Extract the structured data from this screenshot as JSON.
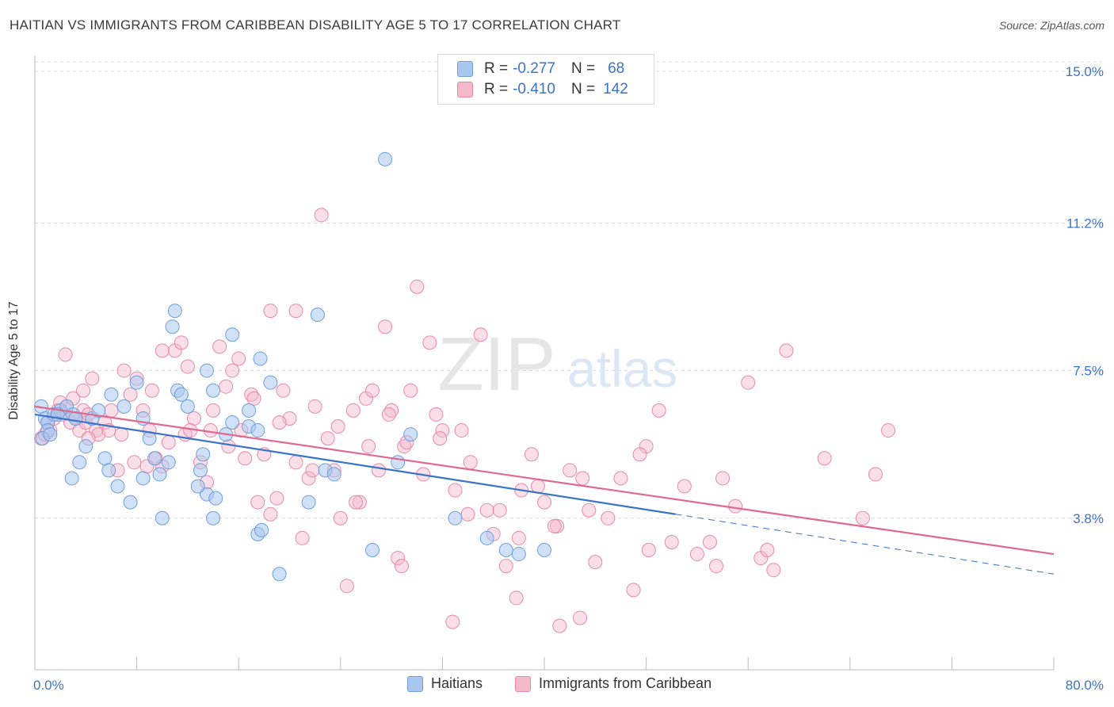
{
  "title": "HAITIAN VS IMMIGRANTS FROM CARIBBEAN DISABILITY AGE 5 TO 17 CORRELATION CHART",
  "source": "Source: ZipAtlas.com",
  "watermark": {
    "zip": "ZIP",
    "atlas": "atlas"
  },
  "legend": {
    "r_label": "R =",
    "n_label": "N =",
    "items": [
      {
        "name": "Haitians",
        "r": "-0.277",
        "n": "68",
        "fill": "#a9c6ee",
        "stroke": "#6f9fdc"
      },
      {
        "name": "Immigrants from Caribbean",
        "r": "-0.410",
        "n": "142",
        "fill": "#f5b9cc",
        "stroke": "#e68aa8"
      }
    ]
  },
  "colors": {
    "blue": "#3a74c9",
    "pink": "#e0698f",
    "grid": "#d9d9d9",
    "tick_text": "#3a74c9"
  },
  "chart_data": {
    "type": "scatter",
    "title": "HAITIAN VS IMMIGRANTS FROM CARIBBEAN DISABILITY AGE 5 TO 17 CORRELATION CHART",
    "xlabel": "",
    "ylabel": "Disability Age 5 to 17",
    "xlim": [
      0,
      80
    ],
    "ylim": [
      0,
      15.4
    ],
    "x_tick_labels": [
      "0.0%",
      "80.0%"
    ],
    "y_ticks": [
      3.8,
      7.5,
      11.2,
      15.0
    ],
    "y_tick_labels": [
      "3.8%",
      "7.5%",
      "11.2%",
      "15.0%"
    ],
    "grid": true,
    "legend_position": "top-center",
    "series": [
      {
        "name": "Haitians",
        "color": "#6f9fdc",
        "trend": {
          "x": [
            0,
            50.3
          ],
          "y": [
            6.4,
            3.9
          ],
          "dashed_to": [
            80,
            2.4
          ]
        },
        "points": [
          [
            0.5,
            6.6
          ],
          [
            0.8,
            6.3
          ],
          [
            1,
            6.2
          ],
          [
            1,
            6.0
          ],
          [
            0.6,
            5.8
          ],
          [
            1.5,
            6.4
          ],
          [
            2,
            6.5
          ],
          [
            2.5,
            6.6
          ],
          [
            1.8,
            6.4
          ],
          [
            1.2,
            5.9
          ],
          [
            3,
            6.4
          ],
          [
            4.5,
            6.3
          ],
          [
            5,
            6.5
          ],
          [
            3.5,
            5.2
          ],
          [
            4,
            5.6
          ],
          [
            5.5,
            5.3
          ],
          [
            5.8,
            5.0
          ],
          [
            2.9,
            4.8
          ],
          [
            6.5,
            4.6
          ],
          [
            3.2,
            6.3
          ],
          [
            7,
            6.6
          ],
          [
            6,
            6.9
          ],
          [
            8,
            7.2
          ],
          [
            8.5,
            6.3
          ],
          [
            9,
            5.8
          ],
          [
            9.8,
            4.9
          ],
          [
            8.5,
            4.8
          ],
          [
            7.5,
            4.2
          ],
          [
            10,
            3.8
          ],
          [
            9.4,
            5.3
          ],
          [
            10.8,
            8.6
          ],
          [
            11,
            9.0
          ],
          [
            11.2,
            7.0
          ],
          [
            11.5,
            6.9
          ],
          [
            12,
            6.6
          ],
          [
            13.5,
            7.5
          ],
          [
            14,
            7.0
          ],
          [
            15.5,
            6.2
          ],
          [
            16.8,
            6.1
          ],
          [
            17.5,
            6.0
          ],
          [
            17.7,
            7.8
          ],
          [
            18.5,
            7.2
          ],
          [
            15.5,
            8.4
          ],
          [
            13.2,
            5.4
          ],
          [
            13.5,
            4.4
          ],
          [
            14,
            3.8
          ],
          [
            14.2,
            4.3
          ],
          [
            15,
            5.9
          ],
          [
            16.8,
            6.5
          ],
          [
            10.5,
            5.2
          ],
          [
            12.8,
            4.6
          ],
          [
            13,
            5.0
          ],
          [
            17.5,
            3.4
          ],
          [
            17.8,
            3.5
          ],
          [
            19.2,
            2.4
          ],
          [
            21.5,
            4.2
          ],
          [
            22.2,
            8.9
          ],
          [
            22.8,
            5.0
          ],
          [
            23.5,
            4.9
          ],
          [
            26.5,
            3.0
          ],
          [
            27.5,
            12.8
          ],
          [
            28.5,
            5.2
          ],
          [
            29.5,
            5.9
          ],
          [
            33,
            3.8
          ],
          [
            35.5,
            3.3
          ],
          [
            37,
            3.0
          ],
          [
            38,
            2.9
          ],
          [
            40,
            3.0
          ]
        ]
      },
      {
        "name": "Immigrants from Caribbean",
        "color": "#e68aa8",
        "trend": {
          "x": [
            0,
            80
          ],
          "y": [
            6.6,
            2.9
          ]
        },
        "points": [
          [
            0.5,
            5.8
          ],
          [
            0.8,
            5.9
          ],
          [
            1,
            6.2
          ],
          [
            1.2,
            6.0
          ],
          [
            1.5,
            6.3
          ],
          [
            1.8,
            6.5
          ],
          [
            2,
            6.7
          ],
          [
            2.2,
            6.4
          ],
          [
            2.5,
            6.6
          ],
          [
            2.8,
            6.2
          ],
          [
            3,
            6.8
          ],
          [
            3.2,
            6.3
          ],
          [
            3.5,
            6.0
          ],
          [
            3.8,
            6.5
          ],
          [
            4,
            6.2
          ],
          [
            4.2,
            6.4
          ],
          [
            4.5,
            7.3
          ],
          [
            4.8,
            6.0
          ],
          [
            5,
            5.9
          ],
          [
            2.4,
            7.9
          ],
          [
            5.5,
            6.2
          ],
          [
            6,
            6.5
          ],
          [
            6.5,
            5.0
          ],
          [
            7,
            7.5
          ],
          [
            7.5,
            6.9
          ],
          [
            8,
            7.3
          ],
          [
            8.5,
            6.5
          ],
          [
            9,
            6.0
          ],
          [
            9.5,
            5.3
          ],
          [
            10,
            5.1
          ],
          [
            10.5,
            5.7
          ],
          [
            11,
            8.0
          ],
          [
            11.5,
            8.2
          ],
          [
            12,
            7.6
          ],
          [
            12.5,
            6.3
          ],
          [
            13,
            5.2
          ],
          [
            13.5,
            4.7
          ],
          [
            14,
            6.5
          ],
          [
            14.5,
            8.1
          ],
          [
            15,
            7.1
          ],
          [
            15.5,
            7.5
          ],
          [
            16,
            7.8
          ],
          [
            16.5,
            5.3
          ],
          [
            17,
            6.9
          ],
          [
            17.5,
            4.2
          ],
          [
            18,
            5.4
          ],
          [
            18.5,
            3.9
          ],
          [
            19,
            4.3
          ],
          [
            19.5,
            7.0
          ],
          [
            20,
            6.3
          ],
          [
            20.5,
            5.2
          ],
          [
            21,
            3.3
          ],
          [
            21.5,
            4.8
          ],
          [
            22,
            6.6
          ],
          [
            22.5,
            11.4
          ],
          [
            23,
            5.8
          ],
          [
            23.5,
            5.0
          ],
          [
            24,
            3.8
          ],
          [
            24.5,
            2.1
          ],
          [
            25,
            6.5
          ],
          [
            25.5,
            4.2
          ],
          [
            26,
            6.8
          ],
          [
            26.5,
            7.0
          ],
          [
            27,
            5.0
          ],
          [
            27.5,
            8.6
          ],
          [
            28,
            6.5
          ],
          [
            28.5,
            2.8
          ],
          [
            29,
            5.6
          ],
          [
            29.5,
            7.0
          ],
          [
            30,
            9.6
          ],
          [
            30.5,
            4.9
          ],
          [
            31,
            8.2
          ],
          [
            31.5,
            6.4
          ],
          [
            32,
            6.0
          ],
          [
            33,
            4.5
          ],
          [
            33.5,
            6.0
          ],
          [
            34,
            3.9
          ],
          [
            35,
            8.4
          ],
          [
            35.5,
            4.0
          ],
          [
            36,
            3.4
          ],
          [
            37,
            2.6
          ],
          [
            38,
            3.3
          ],
          [
            39,
            5.4
          ],
          [
            39.5,
            4.6
          ],
          [
            40,
            4.2
          ],
          [
            41,
            3.6
          ],
          [
            42,
            5.0
          ],
          [
            43,
            4.8
          ],
          [
            44,
            2.7
          ],
          [
            45,
            3.8
          ],
          [
            46,
            4.8
          ],
          [
            47,
            2.0
          ],
          [
            48,
            5.6
          ],
          [
            49,
            6.5
          ],
          [
            50,
            3.2
          ],
          [
            51,
            4.6
          ],
          [
            52,
            2.9
          ],
          [
            53,
            3.2
          ],
          [
            54,
            4.8
          ],
          [
            55,
            4.1
          ],
          [
            56,
            7.2
          ],
          [
            57,
            2.8
          ],
          [
            58,
            2.5
          ],
          [
            59,
            8.0
          ],
          [
            62,
            5.3
          ],
          [
            65,
            3.8
          ],
          [
            66,
            4.9
          ],
          [
            67,
            6.0
          ],
          [
            20.5,
            9.0
          ],
          [
            18.5,
            9.0
          ],
          [
            10,
            8.0
          ],
          [
            6.8,
            5.9
          ],
          [
            8.8,
            5.1
          ],
          [
            11.8,
            5.9
          ],
          [
            13.8,
            6.0
          ],
          [
            16.2,
            6.0
          ],
          [
            19.2,
            6.2
          ],
          [
            21.8,
            5.0
          ],
          [
            23.8,
            6.1
          ],
          [
            26.2,
            5.6
          ],
          [
            27.8,
            6.4
          ],
          [
            29.2,
            5.7
          ],
          [
            31.8,
            5.8
          ],
          [
            34.2,
            5.2
          ],
          [
            36.5,
            4.0
          ],
          [
            38.2,
            4.5
          ],
          [
            40.8,
            3.6
          ],
          [
            43.5,
            4.0
          ],
          [
            47.5,
            5.4
          ],
          [
            48.2,
            3.0
          ],
          [
            4.2,
            5.8
          ],
          [
            5.8,
            6.0
          ],
          [
            3.8,
            7.0
          ],
          [
            7.8,
            5.2
          ],
          [
            9.2,
            7.0
          ],
          [
            12.2,
            6.0
          ],
          [
            15.2,
            5.6
          ],
          [
            17.2,
            6.8
          ],
          [
            25.2,
            4.2
          ],
          [
            28.8,
            2.6
          ],
          [
            32.8,
            1.2
          ],
          [
            37.8,
            1.8
          ],
          [
            41.2,
            1.1
          ],
          [
            42.8,
            1.3
          ],
          [
            53.5,
            2.6
          ],
          [
            57.5,
            3.0
          ]
        ]
      }
    ]
  }
}
